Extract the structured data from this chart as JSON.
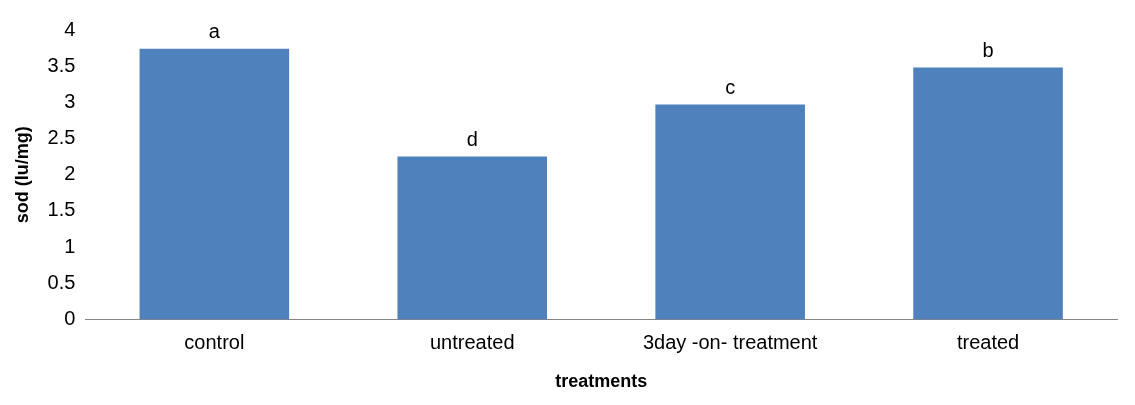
{
  "chart_data": {
    "type": "bar",
    "xlabel": "treatments",
    "ylabel": "sod (Iu/mg)",
    "categories": [
      "control",
      "untreated",
      "3day -on- treatment",
      "treated"
    ],
    "values": [
      3.74,
      2.25,
      2.97,
      3.48
    ],
    "color": "#4f81bd",
    "value_labels": [
      "a",
      "d",
      "c",
      "b"
    ],
    "ylim": [
      0,
      4
    ],
    "yticks": [
      0,
      0.5,
      1,
      1.5,
      2,
      2.5,
      3,
      3.5,
      4
    ],
    "grid": false,
    "legend": false
  }
}
